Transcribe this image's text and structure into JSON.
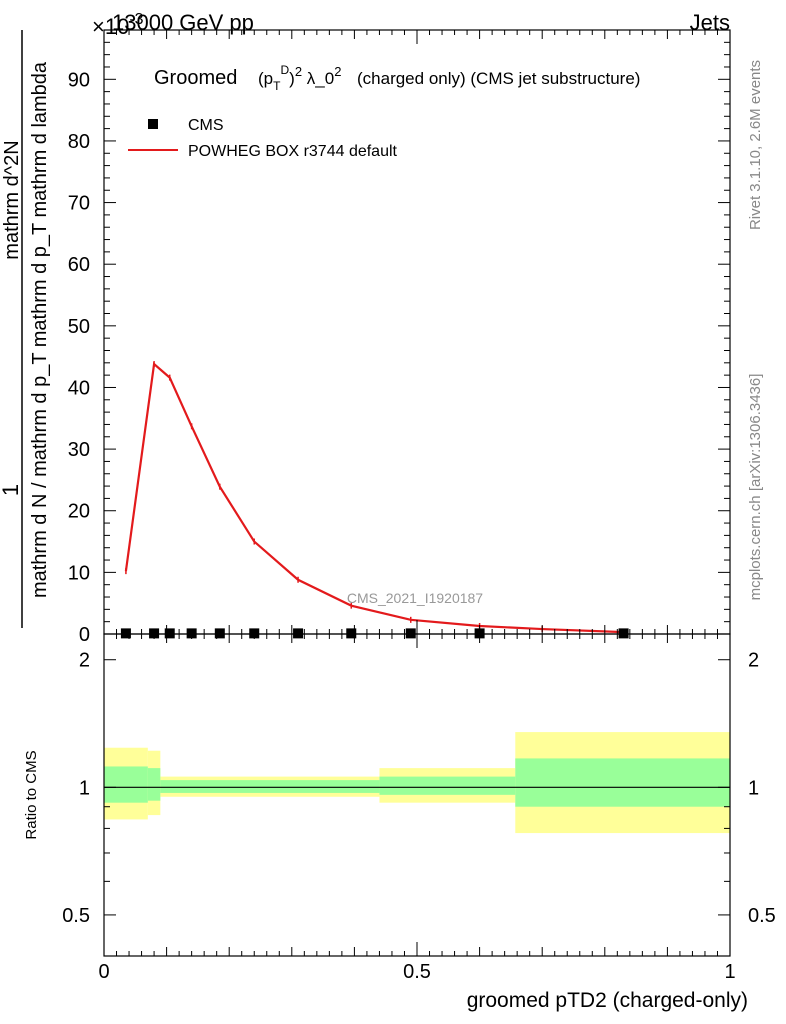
{
  "header": {
    "energy": "13000 GeV pp",
    "process": "Jets",
    "y_multiplier": "×10",
    "y_multiplier_exp": "-3"
  },
  "side_labels": {
    "generator": "Rivet 3.1.10,  2.6M events",
    "source": "mcplots.cern.ch [arXiv:1306.3436]"
  },
  "watermark": "CMS_2021_I1920187",
  "chart_data": [
    {
      "type": "line",
      "title_main": "Groomed",
      "title_formula": "(p_T^D)^2 λ_0^2",
      "title_rest": "(charged only) (CMS jet substructure)",
      "ylabel_numerator": "1",
      "ylabel_denominator": "mathrm d N / mathrm d p_T mathrm d p_T mathrm d lambda",
      "ylabel_right": "mathrm d^2N",
      "xlim": [
        0,
        1
      ],
      "ylim": [
        0,
        98
      ],
      "y_ticks": [
        0,
        10,
        20,
        30,
        40,
        50,
        60,
        70,
        80,
        90
      ],
      "legend": [
        {
          "label": "CMS",
          "marker": "square",
          "color": "#000000"
        },
        {
          "label": "POWHEG BOX r3744 default",
          "marker": "line",
          "color": "#e31a1c"
        }
      ],
      "series": [
        {
          "name": "CMS",
          "x": [
            0.035,
            0.08,
            0.105,
            0.14,
            0.185,
            0.24,
            0.31,
            0.395,
            0.49,
            0.6,
            0.83
          ],
          "values": [
            0.1,
            0.1,
            0.1,
            0.1,
            0.1,
            0.1,
            0.1,
            0.1,
            0.1,
            0.1,
            0.1
          ]
        },
        {
          "name": "POWHEG BOX r3744 default",
          "x": [
            0.035,
            0.08,
            0.105,
            0.14,
            0.185,
            0.24,
            0.31,
            0.395,
            0.49,
            0.6,
            0.7,
            0.83
          ],
          "values": [
            10.2,
            43.8,
            41.6,
            33.7,
            23.9,
            15.0,
            8.8,
            4.6,
            2.3,
            1.3,
            0.8,
            0.3
          ]
        }
      ]
    },
    {
      "type": "area",
      "ylabel": "Ratio to CMS",
      "xlabel": "groomed pTD2 (charged-only)",
      "xlim": [
        0,
        1
      ],
      "ylim": [
        0.4,
        2.3
      ],
      "scale": "log",
      "x_ticks": [
        0,
        0.5,
        1
      ],
      "y_ticks": [
        0.5,
        1,
        2
      ],
      "reference_line": 1,
      "band_edges": [
        0,
        0.07,
        0.09,
        0.44,
        0.657,
        1
      ],
      "yellow_band": {
        "low": [
          0.84,
          0.86,
          0.95,
          0.92,
          0.78
        ],
        "high": [
          1.24,
          1.22,
          1.06,
          1.11,
          1.35
        ]
      },
      "green_band": {
        "low": [
          0.92,
          0.93,
          0.97,
          0.96,
          0.9
        ],
        "high": [
          1.12,
          1.11,
          1.04,
          1.06,
          1.17
        ]
      },
      "colors": {
        "yellow": "#ffff99",
        "green": "#99ff99"
      }
    }
  ]
}
